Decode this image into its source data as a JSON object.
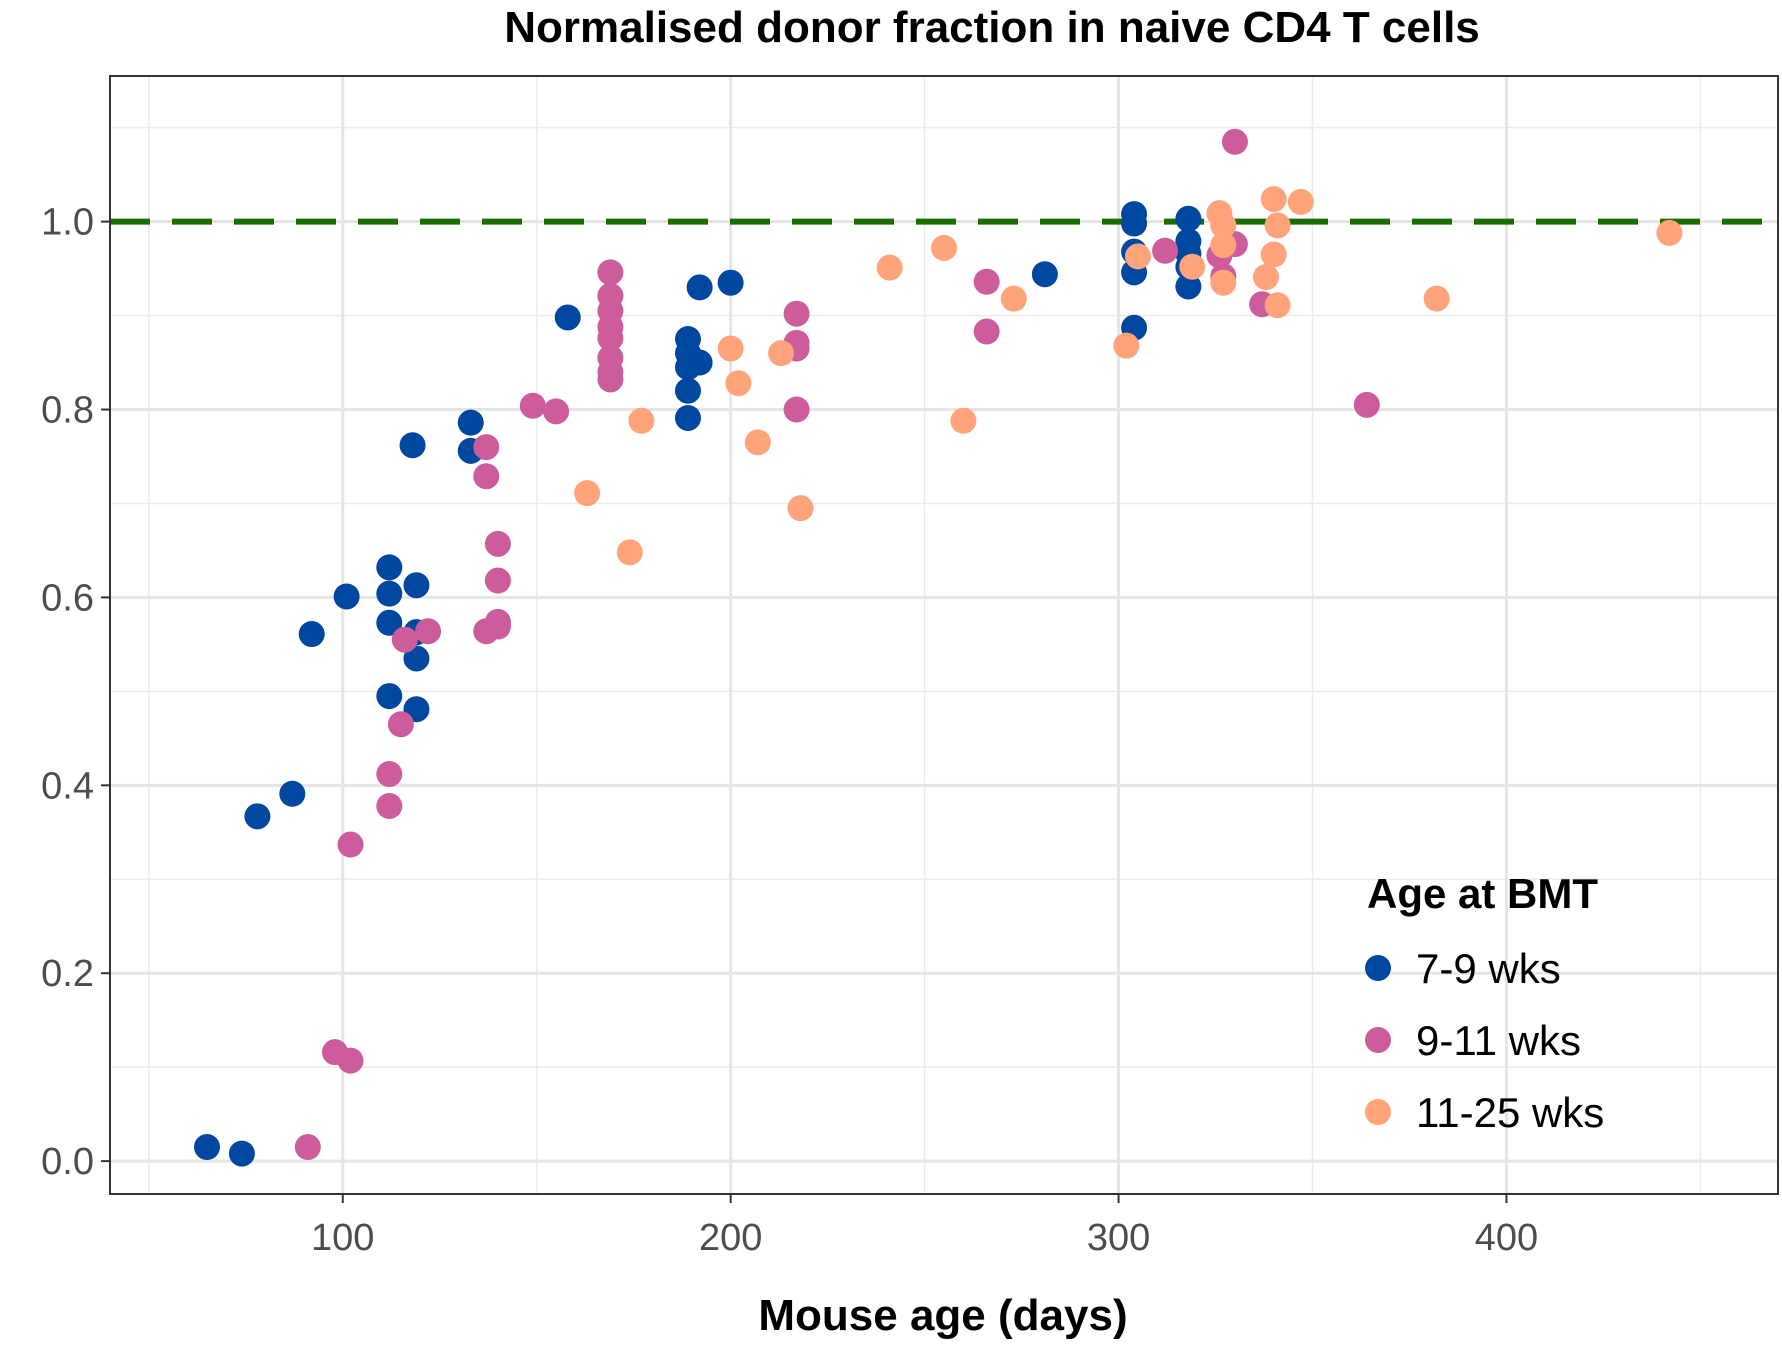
{
  "chart_data": {
    "type": "scatter",
    "title": "Normalised donor fraction in naive CD4 T cells",
    "xlabel": "Mouse age (days)",
    "ylabel": "",
    "xlim": [
      40,
      470
    ],
    "ylim": [
      -0.035,
      1.155
    ],
    "x_ticks": [
      100,
      200,
      300,
      400
    ],
    "y_ticks": [
      0.0,
      0.2,
      0.4,
      0.6,
      0.8,
      1.0
    ],
    "y_tick_labels": [
      "0.0",
      "0.2",
      "0.4",
      "0.6",
      "0.8",
      "1.0"
    ],
    "x_tick_labels": [
      "100",
      "200",
      "300",
      "400"
    ],
    "grid": true,
    "reference_line": {
      "y": 1.0,
      "style": "dashed",
      "color": "#1a6b00"
    },
    "legend": {
      "title": "Age at BMT",
      "position": "bottom-right"
    },
    "series": [
      {
        "name": "7-9 wks",
        "color": "#0047a0",
        "points": [
          [
            65,
            0.015
          ],
          [
            74,
            0.008
          ],
          [
            78,
            0.367
          ],
          [
            87,
            0.391
          ],
          [
            92,
            0.561
          ],
          [
            101,
            0.601
          ],
          [
            112,
            0.632
          ],
          [
            112,
            0.604
          ],
          [
            112,
            0.573
          ],
          [
            112,
            0.495
          ],
          [
            118,
            0.762
          ],
          [
            119,
            0.613
          ],
          [
            119,
            0.563
          ],
          [
            119,
            0.535
          ],
          [
            119,
            0.481
          ],
          [
            133,
            0.786
          ],
          [
            133,
            0.756
          ],
          [
            158,
            0.898
          ],
          [
            189,
            0.875
          ],
          [
            189,
            0.86
          ],
          [
            189,
            0.845
          ],
          [
            189,
            0.82
          ],
          [
            189,
            0.791
          ],
          [
            192,
            0.85
          ],
          [
            192,
            0.93
          ],
          [
            200,
            0.935
          ],
          [
            281,
            0.944
          ],
          [
            304,
            1.008
          ],
          [
            304,
            0.998
          ],
          [
            304,
            0.968
          ],
          [
            304,
            0.946
          ],
          [
            304,
            0.887
          ],
          [
            318,
            1.003
          ],
          [
            318,
            0.979
          ],
          [
            318,
            0.966
          ],
          [
            318,
            0.952
          ],
          [
            318,
            0.931
          ]
        ]
      },
      {
        "name": "9-11 wks",
        "color": "#cc5c9b",
        "points": [
          [
            91,
            0.015
          ],
          [
            98,
            0.116
          ],
          [
            102,
            0.107
          ],
          [
            102,
            0.337
          ],
          [
            112,
            0.412
          ],
          [
            112,
            0.378
          ],
          [
            115,
            0.465
          ],
          [
            116,
            0.555
          ],
          [
            122,
            0.564
          ],
          [
            137,
            0.76
          ],
          [
            137,
            0.729
          ],
          [
            137,
            0.564
          ],
          [
            140,
            0.657
          ],
          [
            140,
            0.618
          ],
          [
            140,
            0.574
          ],
          [
            140,
            0.569
          ],
          [
            149,
            0.804
          ],
          [
            155,
            0.798
          ],
          [
            169,
            0.946
          ],
          [
            169,
            0.921
          ],
          [
            169,
            0.905
          ],
          [
            169,
            0.888
          ],
          [
            169,
            0.876
          ],
          [
            169,
            0.855
          ],
          [
            169,
            0.84
          ],
          [
            169,
            0.832
          ],
          [
            217,
            0.902
          ],
          [
            217,
            0.871
          ],
          [
            217,
            0.865
          ],
          [
            217,
            0.8
          ],
          [
            266,
            0.936
          ],
          [
            266,
            0.883
          ],
          [
            312,
            0.969
          ],
          [
            326,
            0.964
          ],
          [
            327,
            0.942
          ],
          [
            330,
            1.085
          ],
          [
            330,
            0.976
          ],
          [
            337,
            0.912
          ],
          [
            364,
            0.805
          ]
        ]
      },
      {
        "name": "11-25 wks",
        "color": "#ffa37a",
        "points": [
          [
            163,
            0.711
          ],
          [
            174,
            0.648
          ],
          [
            177,
            0.788
          ],
          [
            200,
            0.865
          ],
          [
            202,
            0.828
          ],
          [
            207,
            0.765
          ],
          [
            213,
            0.86
          ],
          [
            218,
            0.695
          ],
          [
            241,
            0.951
          ],
          [
            255,
            0.972
          ],
          [
            260,
            0.788
          ],
          [
            273,
            0.918
          ],
          [
            302,
            0.868
          ],
          [
            305,
            0.963
          ],
          [
            319,
            0.952
          ],
          [
            326,
            1.009
          ],
          [
            327,
            0.996
          ],
          [
            327,
            0.975
          ],
          [
            327,
            0.935
          ],
          [
            338,
            0.941
          ],
          [
            340,
            1.024
          ],
          [
            340,
            0.965
          ],
          [
            341,
            0.996
          ],
          [
            341,
            0.911
          ],
          [
            347,
            1.021
          ],
          [
            382,
            0.918
          ],
          [
            442,
            0.988
          ]
        ]
      }
    ]
  }
}
